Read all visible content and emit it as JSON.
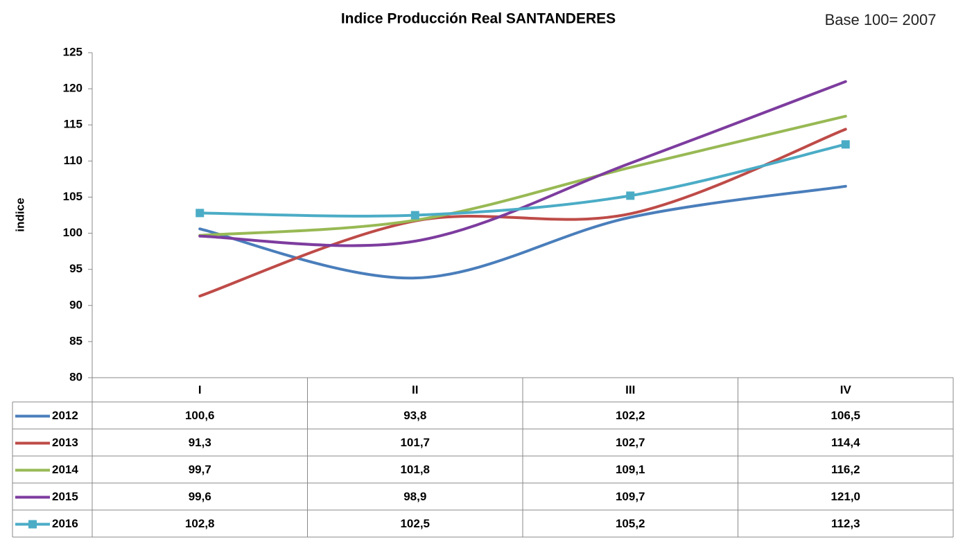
{
  "chart_data": {
    "type": "line",
    "title": "Indice Producción Real SANTANDERES",
    "annotation": "Base 100= 2007",
    "y_label": "indice",
    "categories": [
      "I",
      "II",
      "III",
      "IV"
    ],
    "ylim": [
      80,
      125
    ],
    "yticks": [
      80,
      85,
      90,
      95,
      100,
      105,
      110,
      115,
      120,
      125
    ],
    "smooth": true,
    "series": [
      {
        "name": "2012",
        "color": "#4a7ebb",
        "values": [
          100.6,
          93.8,
          102.2,
          106.5
        ],
        "value_labels": [
          "100,6",
          "93,8",
          "102,2",
          "106,5"
        ]
      },
      {
        "name": "2013",
        "color": "#be4b48",
        "values": [
          91.3,
          101.7,
          102.7,
          114.4
        ],
        "value_labels": [
          "91,3",
          "101,7",
          "102,7",
          "114,4"
        ]
      },
      {
        "name": "2014",
        "color": "#98b954",
        "values": [
          99.7,
          101.8,
          109.1,
          116.2
        ],
        "value_labels": [
          "99,7",
          "101,8",
          "109,1",
          "116,2"
        ]
      },
      {
        "name": "2015",
        "color": "#7d3c9e",
        "values": [
          99.6,
          98.9,
          109.7,
          121.0
        ],
        "value_labels": [
          "99,6",
          "98,9",
          "109,7",
          "121,0"
        ]
      },
      {
        "name": "2016",
        "color": "#4bacc6",
        "marker": "square",
        "values": [
          102.8,
          102.5,
          105.2,
          112.3
        ],
        "value_labels": [
          "102,8",
          "102,5",
          "105,2",
          "112,3"
        ]
      }
    ]
  }
}
